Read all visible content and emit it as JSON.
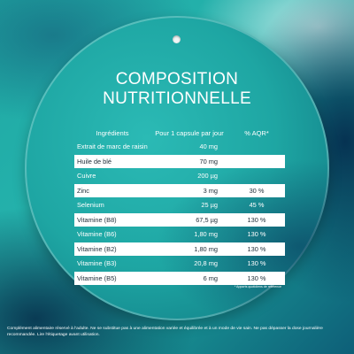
{
  "title_line1": "COMPOSITION",
  "title_line2": "NUTRITIONNELLE",
  "table": {
    "headers": [
      "Ingrédients",
      "Pour 1 capsule par jour",
      "% AQR*"
    ],
    "rows": [
      {
        "ingredient": "Extrait de marc de raisin",
        "amount": "40 mg",
        "aqr": "",
        "style": "teal"
      },
      {
        "ingredient": "Huile de blé",
        "amount": "70 mg",
        "aqr": "",
        "style": "light"
      },
      {
        "ingredient": "Cuivre",
        "amount": "200 µg",
        "aqr": "",
        "style": "teal"
      },
      {
        "ingredient": "Zinc",
        "amount": "3 mg",
        "aqr": "30 %",
        "style": "light"
      },
      {
        "ingredient": "Selenium",
        "amount": "25 µg",
        "aqr": "45 %",
        "style": "teal"
      },
      {
        "ingredient": "Vitamine (B8)",
        "amount": "67,5 µg",
        "aqr": "130 %",
        "style": "light"
      },
      {
        "ingredient": "Vitamine (B6)",
        "amount": "1,80 mg",
        "aqr": "130 %",
        "style": "teal"
      },
      {
        "ingredient": "Vitamine (B2)",
        "amount": "1,80 mg",
        "aqr": "130 %",
        "style": "light"
      },
      {
        "ingredient": "Vitamine (B3)",
        "amount": "20,8 mg",
        "aqr": "130 %",
        "style": "teal"
      },
      {
        "ingredient": "Vitamine (B5)",
        "amount": "6 mg",
        "aqr": "130 %",
        "style": "light"
      }
    ]
  },
  "note": "* Apports quotidiens de référence",
  "footer": "Complément alimentaire réservé à l'adulte. Ne se substitue pas à une alimentation variée et équilibrée et à un mode de vie sain. Ne pas dépasser la dose journalière recommandée. Lire l'étiquetage avant utilisation."
}
